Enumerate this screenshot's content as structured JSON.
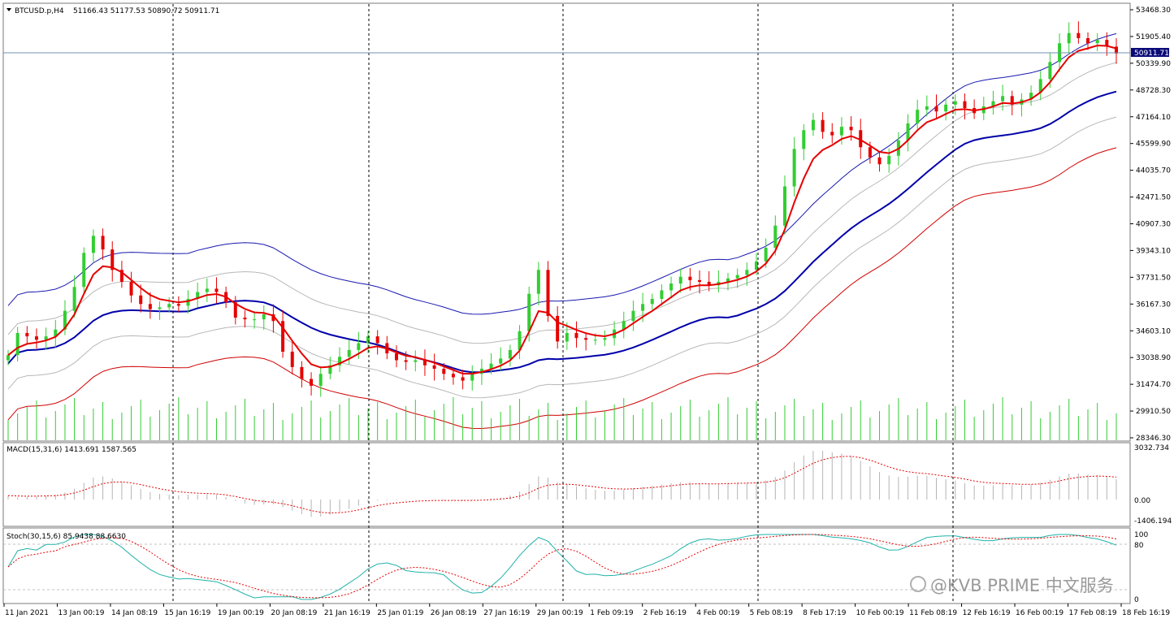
{
  "symbol": "BTCUSD.p,H4",
  "ohlc_text": "51166.43 51177.53 50890.72 50911.71",
  "current_price": "50911.71",
  "colors": {
    "bull": "#32cd32",
    "bear": "#e60000",
    "ema_fast": "#e60000",
    "ma_main": "#0000aa",
    "band_outer_upper": "#1818b0",
    "band_inner": "#b8b8b8",
    "band_outer_lower": "#d00000",
    "volume": "#32cd32",
    "macd_hist": "#b4b4b4",
    "macd_signal": "#e60000",
    "stoch_main": "#20b2aa",
    "stoch_signal": "#e60000",
    "fractal": "#a0a0a0"
  },
  "main_axis_labels": [
    "53468.30",
    "51905.40",
    "50339.90",
    "48728.30",
    "47164.10",
    "45599.90",
    "44035.70",
    "42471.50",
    "40907.30",
    "39343.10",
    "37731.50",
    "36167.30",
    "34603.10",
    "33038.90",
    "31474.70",
    "29910.50",
    "28346.30"
  ],
  "macd": {
    "title": "MACD(15,31,6) 1413.691 1587.565",
    "axis_labels": [
      "3032.734",
      "0.00",
      "-1406.194"
    ]
  },
  "stoch": {
    "title": "Stoch(30,15,6) 85.9438 88.6630",
    "axis_labels": [
      "100",
      "80",
      "0"
    ]
  },
  "time_labels": [
    "11 Jan 2021",
    "13 Jan 00:19",
    "14 Jan 08:19",
    "15 Jan 16:19",
    "19 Jan 00:19",
    "20 Jan 08:19",
    "21 Jan 16:19",
    "25 Jan 01:19",
    "26 Jan 08:19",
    "27 Jan 16:19",
    "29 Jan 00:19",
    "1 Feb 09:19",
    "2 Feb 16:19",
    "4 Feb 00:19",
    "5 Feb 08:19",
    "8 Feb 17:19",
    "10 Feb 00:19",
    "11 Feb 08:19",
    "12 Feb 16:19",
    "16 Feb 00:19",
    "17 Feb 08:19",
    "18 Feb 16:19"
  ],
  "watermark": "@KVB PRIME 中文服务",
  "chart_data": {
    "type": "candlestick",
    "timeframe": "H4",
    "ylim": [
      28346.3,
      53468.3
    ],
    "close_path": [
      33200,
      34500,
      34300,
      34100,
      34300,
      34700,
      35800,
      37200,
      39200,
      40200,
      39400,
      38200,
      37500,
      36700,
      36200,
      35900,
      36000,
      36200,
      36100,
      36500,
      36900,
      37100,
      36900,
      36300,
      35400,
      35300,
      35300,
      35600,
      35200,
      33400,
      32500,
      31800,
      31400,
      32100,
      32600,
      33100,
      33500,
      33900,
      34300,
      33900,
      33300,
      32900,
      32800,
      32900,
      32600,
      32400,
      32100,
      31900,
      31700,
      32100,
      32400,
      32700,
      33000,
      33500,
      34600,
      36800,
      38200,
      35500,
      34000,
      34500,
      34200,
      34100,
      34100,
      34200,
      34700,
      35200,
      35800,
      36200,
      36500,
      37000,
      37400,
      37800,
      37600,
      37500,
      37300,
      37500,
      37700,
      37900,
      38200,
      38700,
      39500,
      40800,
      43100,
      45300,
      46400,
      47000,
      46300,
      46100,
      46600,
      46400,
      45400,
      44800,
      44400,
      44900,
      45800,
      46800,
      47600,
      47800,
      47500,
      47900,
      48100,
      47700,
      47400,
      47800,
      48100,
      48400,
      47900,
      48200,
      48600,
      49400,
      50400,
      51500,
      52100,
      51800,
      51500,
      51700,
      51300,
      50900
    ],
    "timeline_start": "11 Jan 2021",
    "timeline_end": "18 Feb 16:19"
  }
}
